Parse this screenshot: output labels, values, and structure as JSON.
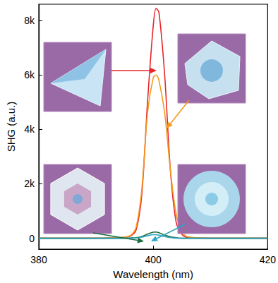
{
  "chart_data": {
    "type": "line",
    "x_label": "Wavelength (nm)",
    "y_label": "SHG (a.u.)",
    "x": [
      380,
      385,
      390,
      394,
      396,
      397,
      398,
      399,
      400,
      400.5,
      401,
      402,
      403,
      404,
      405,
      406,
      410,
      415,
      420
    ],
    "series": [
      {
        "color": "#e8262b",
        "values": [
          0,
          0,
          0,
          20,
          80,
          300,
          1600,
          5000,
          7800,
          8450,
          8300,
          6000,
          2500,
          600,
          150,
          30,
          0,
          0,
          0
        ]
      },
      {
        "color": "#f39a1e",
        "values": [
          0,
          0,
          0,
          20,
          100,
          400,
          1800,
          4600,
          5900,
          6000,
          5800,
          4600,
          2500,
          900,
          250,
          50,
          0,
          0,
          0
        ]
      },
      {
        "color": "#1b6b3c",
        "values": [
          0,
          0,
          0,
          0,
          10,
          20,
          60,
          150,
          220,
          230,
          200,
          120,
          50,
          20,
          0,
          0,
          0,
          0,
          0
        ]
      },
      {
        "color": "#2aa6c4",
        "values": [
          0,
          0,
          0,
          0,
          5,
          10,
          40,
          90,
          130,
          130,
          110,
          60,
          20,
          5,
          0,
          0,
          0,
          0,
          0
        ]
      }
    ],
    "xlim": [
      380,
      420
    ],
    "xticks": [
      380,
      400,
      420
    ],
    "ylim": [
      -400,
      8600
    ],
    "yticks": [
      0,
      {
        "value": 2000,
        "label": "2k"
      },
      {
        "value": 4000,
        "label": "4k"
      },
      {
        "value": 6000,
        "label": "6k"
      },
      {
        "value": 8000,
        "label": "8k"
      }
    ],
    "grid": false
  }
}
